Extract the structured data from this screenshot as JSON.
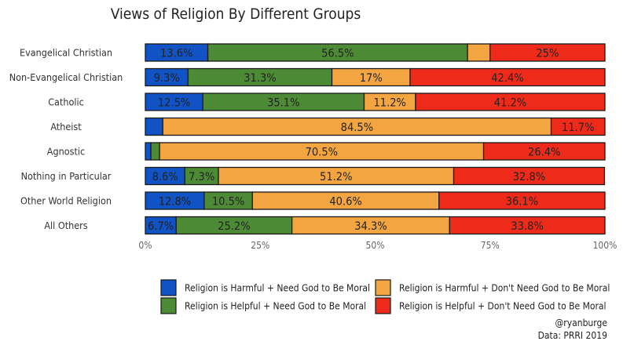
{
  "chart_data": {
    "type": "bar",
    "orientation": "horizontal",
    "stacked": true,
    "title": "Views of Religion By Different Groups",
    "xlabel": "",
    "ylabel": "",
    "xlim": [
      0,
      100
    ],
    "x_ticks": [
      "0%",
      "25%",
      "50%",
      "75%",
      "100%"
    ],
    "x_tick_values": [
      0,
      25,
      50,
      75,
      100
    ],
    "grid": false,
    "legend_position": "bottom",
    "categories": [
      "Evangelical Christian",
      "Non-Evangelical Christian",
      "Catholic",
      "Atheist",
      "Agnostic",
      "Nothing in Particular",
      "Other World Religion",
      "All Others"
    ],
    "series": [
      {
        "name": "Religion is Harmful + Need God to Be Moral",
        "color": "#1153c4",
        "values": [
          13.6,
          9.3,
          12.5,
          3.8,
          1.2,
          8.6,
          12.8,
          6.7
        ],
        "labels": [
          "13.6%",
          "9.3%",
          "12.5%",
          "",
          "",
          "8.6%",
          "12.8%",
          "6.7%"
        ]
      },
      {
        "name": "Religion is Helpful + Need God to Be Moral",
        "color": "#4d8a35",
        "values": [
          56.5,
          31.3,
          35.1,
          0,
          1.9,
          7.3,
          10.5,
          25.2
        ],
        "labels": [
          "56.5%",
          "31.3%",
          "35.1%",
          "",
          "",
          "7.3%",
          "10.5%",
          "25.2%"
        ]
      },
      {
        "name": "Religion is Harmful + Don't Need God to Be Moral",
        "color": "#f2a540",
        "values": [
          4.9,
          17,
          11.2,
          84.5,
          70.5,
          51.2,
          40.6,
          34.3
        ],
        "labels": [
          "",
          "17%",
          "11.2%",
          "84.5%",
          "70.5%",
          "51.2%",
          "40.6%",
          "34.3%"
        ]
      },
      {
        "name": "Religion is Helpful + Don't Need God to Be Moral",
        "color": "#ee2b1b",
        "values": [
          25,
          42.4,
          41.2,
          11.7,
          26.4,
          32.8,
          36.1,
          33.8
        ],
        "labels": [
          "25%",
          "42.4%",
          "41.2%",
          "11.7%",
          "26.4%",
          "32.8%",
          "36.1%",
          "33.8%"
        ]
      }
    ],
    "annotations": [
      "@ryanburge",
      "Data: PRRI 2019"
    ]
  }
}
